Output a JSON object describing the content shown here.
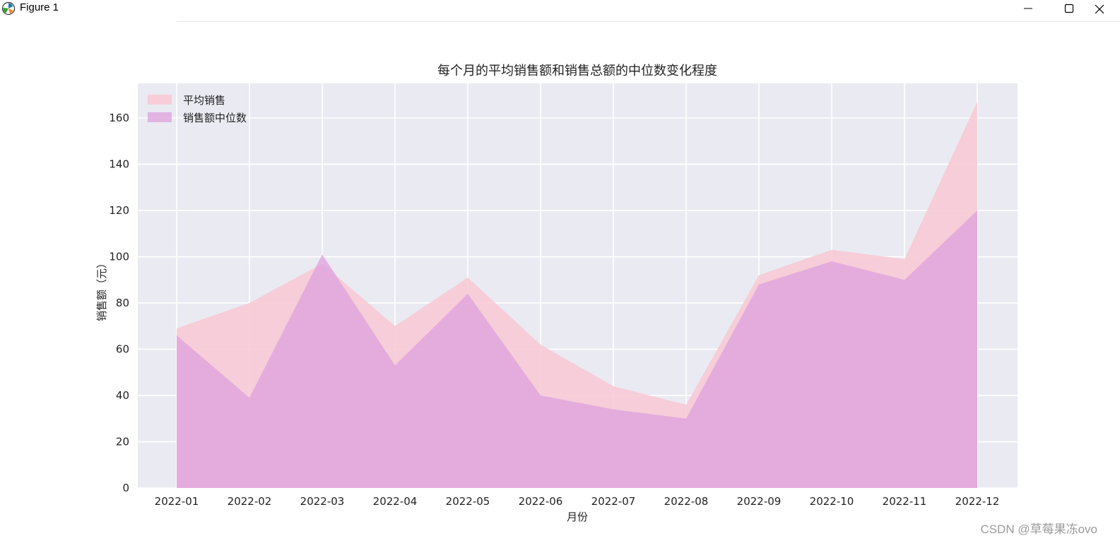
{
  "window": {
    "title": "Figure 1",
    "icons": {
      "app": "matplotlib-icon",
      "minimize": "minimize-icon",
      "maximize": "maximize-icon",
      "close": "close-icon"
    }
  },
  "chart_data": {
    "type": "area",
    "title": "每个月的平均销售额和销售总额的中位数变化程度",
    "xlabel": "月份",
    "ylabel": "销售额（元）",
    "categories": [
      "2022-01",
      "2022-02",
      "2022-03",
      "2022-04",
      "2022-05",
      "2022-06",
      "2022-07",
      "2022-08",
      "2022-09",
      "2022-10",
      "2022-11",
      "2022-12"
    ],
    "series": [
      {
        "name": "平均销售",
        "values": [
          69,
          80,
          97,
          70,
          91,
          62,
          44,
          36,
          92,
          103,
          99,
          167
        ],
        "color": "#f8c8d4"
      },
      {
        "name": "销售额中位数",
        "values": [
          66,
          39,
          101,
          53,
          84,
          40,
          34,
          30,
          88,
          98,
          90,
          120
        ],
        "color": "#dda0dd"
      }
    ],
    "ylim": [
      0,
      175
    ],
    "yticks": [
      0,
      20,
      40,
      60,
      80,
      100,
      120,
      140,
      160
    ],
    "grid": true,
    "legend_position": "top-left",
    "background": "#eaeaf2"
  },
  "watermark": "CSDN @草莓果冻ovo"
}
